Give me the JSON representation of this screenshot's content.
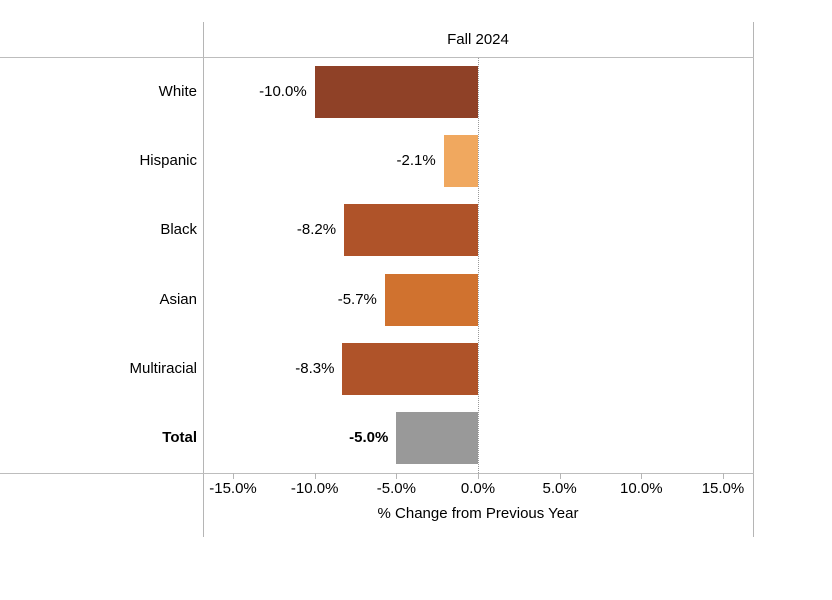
{
  "chart_data": {
    "type": "bar",
    "orientation": "horizontal",
    "title": "Fall 2024",
    "xlabel": "% Change from Previous Year",
    "categories": [
      "White",
      "Hispanic",
      "Black",
      "Asian",
      "Multiracial",
      "Total"
    ],
    "values": [
      -10.0,
      -2.1,
      -8.2,
      -5.7,
      -8.3,
      -5.0
    ],
    "value_labels": [
      "-10.0%",
      "-2.1%",
      "-8.2%",
      "-5.7%",
      "-8.3%",
      "-5.0%"
    ],
    "bar_colors": [
      "#8F4127",
      "#F0A85F",
      "#AF5329",
      "#D0722F",
      "#AF5329",
      "#999999"
    ],
    "bold_category": "Total",
    "xlim": [
      -16.9,
      16.9
    ],
    "x_ticks": [
      -15,
      -10,
      -5,
      0,
      5,
      10,
      15
    ],
    "x_tick_labels": [
      "-15.0%",
      "-10.0%",
      "-5.0%",
      "0.0%",
      "5.0%",
      "10.0%",
      "15.0%"
    ],
    "zero_line_style": "dotted",
    "grid": false,
    "legend": null
  },
  "colors": {
    "axis_line": "#bdbdbd",
    "zero_line": "#9a9a9a",
    "text": "#000000"
  }
}
